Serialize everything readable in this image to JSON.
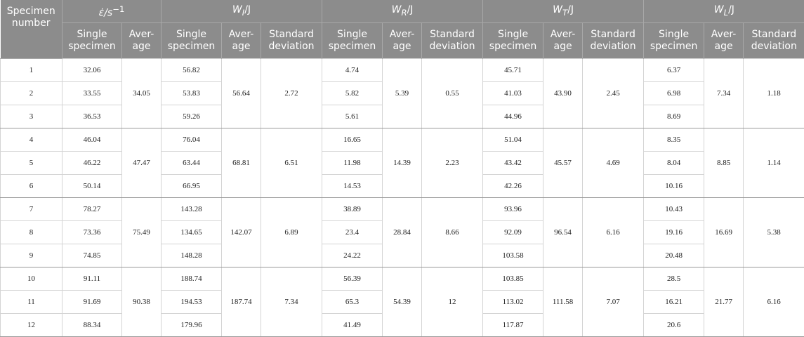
{
  "table": {
    "header": {
      "specimen": "Specimen number",
      "quantities": [
        {
          "symbol": "ε̇",
          "unit": "/s",
          "sup": "−1"
        },
        {
          "symbol": "W",
          "sub": "I",
          "unit": "/J"
        },
        {
          "symbol": "W",
          "sub": "R",
          "unit": "/J"
        },
        {
          "symbol": "W",
          "sub": "T",
          "unit": "/J"
        },
        {
          "symbol": "W",
          "sub": "L",
          "unit": "/J"
        }
      ],
      "subheaders": [
        "Single specimen",
        "Aver-age",
        "Single specimen",
        "Aver-age",
        "Standard deviation",
        "Single specimen",
        "Aver-age",
        "Standard deviation",
        "Single specimen",
        "Aver-age",
        "Standard deviation",
        "Single specimen",
        "Aver-age",
        "Standard deviation"
      ]
    },
    "groups": [
      {
        "specimens": [
          "1",
          "2",
          "3"
        ],
        "rate": {
          "single": [
            "32.06",
            "33.55",
            "36.53"
          ],
          "average": "34.05"
        },
        "energies": [
          {
            "single": [
              "56.82",
              "53.83",
              "59.26"
            ],
            "average": "56.64",
            "sd": "2.72"
          },
          {
            "single": [
              "4.74",
              "5.82",
              "5.61"
            ],
            "average": "5.39",
            "sd": "0.55"
          },
          {
            "single": [
              "45.71",
              "41.03",
              "44.96"
            ],
            "average": "43.90",
            "sd": "2.45"
          },
          {
            "single": [
              "6.37",
              "6.98",
              "8.69"
            ],
            "average": "7.34",
            "sd": "1.18"
          }
        ]
      },
      {
        "specimens": [
          "4",
          "5",
          "6"
        ],
        "rate": {
          "single": [
            "46.04",
            "46.22",
            "50.14"
          ],
          "average": "47.47"
        },
        "energies": [
          {
            "single": [
              "76.04",
              "63.44",
              "66.95"
            ],
            "average": "68.81",
            "sd": "6.51"
          },
          {
            "single": [
              "16.65",
              "11.98",
              "14.53"
            ],
            "average": "14.39",
            "sd": "2.23"
          },
          {
            "single": [
              "51.04",
              "43.42",
              "42.26"
            ],
            "average": "45.57",
            "sd": "4.69"
          },
          {
            "single": [
              "8.35",
              "8.04",
              "10.16"
            ],
            "average": "8.85",
            "sd": "1.14"
          }
        ]
      },
      {
        "specimens": [
          "7",
          "8",
          "9"
        ],
        "rate": {
          "single": [
            "78.27",
            "73.36",
            "74.85"
          ],
          "average": "75.49"
        },
        "energies": [
          {
            "single": [
              "143.28",
              "134.65",
              "148.28"
            ],
            "average": "142.07",
            "sd": "6.89"
          },
          {
            "single": [
              "38.89",
              "23.4",
              "24.22"
            ],
            "average": "28.84",
            "sd": "8.66"
          },
          {
            "single": [
              "93.96",
              "92.09",
              "103.58"
            ],
            "average": "96.54",
            "sd": "6.16"
          },
          {
            "single": [
              "10.43",
              "19.16",
              "20.48"
            ],
            "average": "16.69",
            "sd": "5.38"
          }
        ]
      },
      {
        "specimens": [
          "10",
          "11",
          "12"
        ],
        "rate": {
          "single": [
            "91.11",
            "91.69",
            "88.34"
          ],
          "average": "90.38"
        },
        "energies": [
          {
            "single": [
              "188.74",
              "194.53",
              "179.96"
            ],
            "average": "187.74",
            "sd": "7.34"
          },
          {
            "single": [
              "56.39",
              "65.3",
              "41.49"
            ],
            "average": "54.39",
            "sd": "12"
          },
          {
            "single": [
              "103.85",
              "113.02",
              "117.87"
            ],
            "average": "111.58",
            "sd": "7.07"
          },
          {
            "single": [
              "28.5",
              "16.21",
              "20.6"
            ],
            "average": "21.77",
            "sd": "6.16"
          }
        ]
      }
    ]
  }
}
